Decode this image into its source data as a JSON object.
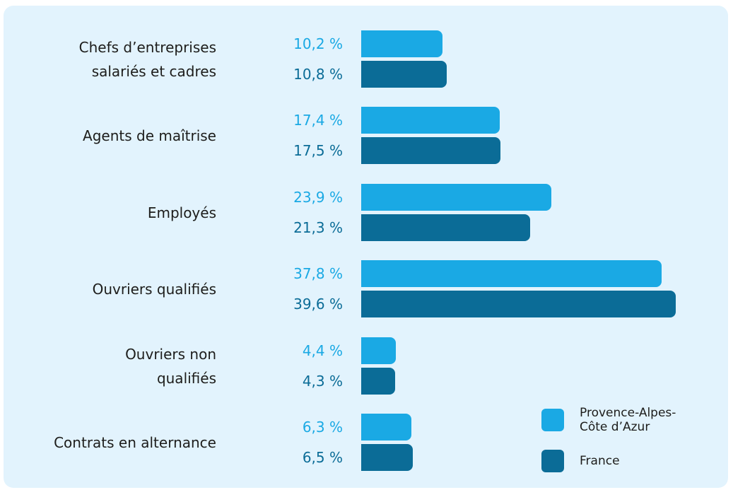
{
  "chart_data": {
    "type": "bar",
    "orientation": "horizontal",
    "categories": [
      "Chefs d’entreprises\nsalariés et cadres",
      "Agents de maîtrise",
      "Employés",
      "Ouvriers qualifiés",
      "Ouvriers non\nqualifiés",
      "Contrats en alternance"
    ],
    "series": [
      {
        "name": "Provence-Alpes-\nCôte d’Azur",
        "color": "#1aa9e4",
        "values": [
          10.2,
          17.4,
          23.9,
          37.8,
          4.4,
          6.3
        ],
        "value_labels": [
          "10,2 %",
          "17,4 %",
          "23,9 %",
          "37,8 %",
          "4,4 %",
          "6,3 %"
        ]
      },
      {
        "name": "France",
        "color": "#0b6c97",
        "values": [
          10.8,
          17.5,
          21.3,
          39.6,
          4.3,
          6.5
        ],
        "value_labels": [
          "10,8 %",
          "17,5 %",
          "21,3 %",
          "39,6 %",
          "4,3 %",
          "6,5 %"
        ]
      }
    ],
    "legend": "bottom-right"
  }
}
